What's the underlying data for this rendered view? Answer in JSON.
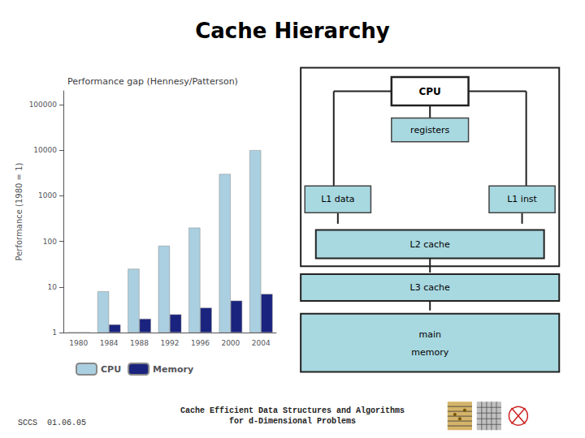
{
  "title": "Cache Hierarchy",
  "annotations": [
    "CPU",
    "registers",
    "L1 data",
    "L1 inst",
    "L2 cache",
    "L3 cache",
    "main\n\nmemory",
    "SCCS  01.06.05",
    "Cache Efficient Data Structures and Algorithms\nfor d-Dimensional Problems"
  ],
  "chart_data": {
    "type": "bar",
    "title": "Performance gap (Hennesy/Patterson)",
    "categories": [
      "1980",
      "1984",
      "1988",
      "1992",
      "1996",
      "2000",
      "2004"
    ],
    "series": [
      {
        "name": "CPU",
        "color": "#aacfe0",
        "values": [
          1,
          8,
          25,
          80,
          200,
          3000,
          10000
        ]
      },
      {
        "name": "Memory",
        "color": "#1a237e",
        "values": [
          1,
          1.5,
          2,
          2.5,
          3.5,
          5,
          7
        ]
      }
    ],
    "ylabel": "Performance (1980 = 1)",
    "log": "y",
    "ylim": [
      1,
      200000
    ],
    "yticks": [
      1,
      10,
      100,
      1000,
      10000,
      100000
    ],
    "grid": false,
    "legend": "bottom"
  }
}
